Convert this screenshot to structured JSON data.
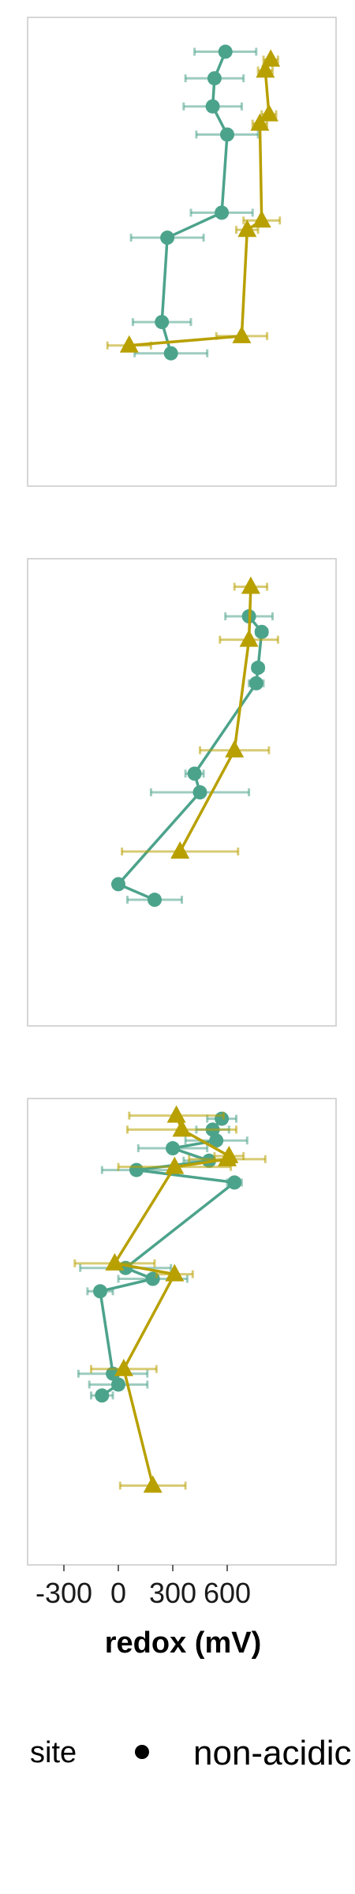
{
  "chart_data": {
    "type": "scatter",
    "xlabel": "redox (mV)",
    "xlim": [
      -500,
      1200
    ],
    "x_ticks": [
      -300,
      0,
      300,
      600
    ],
    "tick_labels": [
      "-300",
      "0",
      "300",
      "600"
    ],
    "legend": {
      "title": "site",
      "entries": [
        "non-acidic"
      ],
      "placement": "bottom"
    },
    "colors": {
      "non-acidic": "#4ca38b",
      "acidic": "#b8a000"
    },
    "panels": [
      {
        "ylim": [
          0,
          30
        ],
        "series": [
          {
            "name": "non-acidic",
            "marker": "circle",
            "points": [
              {
                "x": 590,
                "y": 2.2,
                "err": 170
              },
              {
                "x": 530,
                "y": 3.9,
                "err": 160
              },
              {
                "x": 520,
                "y": 5.7,
                "err": 160
              },
              {
                "x": 600,
                "y": 7.5,
                "err": 170
              },
              {
                "x": 570,
                "y": 12.5,
                "err": 170
              },
              {
                "x": 270,
                "y": 14.1,
                "err": 200
              },
              {
                "x": 240,
                "y": 19.5,
                "err": 160
              },
              {
                "x": 290,
                "y": 21.5,
                "err": 200
              }
            ]
          },
          {
            "name": "acidic",
            "marker": "triangle",
            "points": [
              {
                "x": 840,
                "y": 2.7,
                "err": 40
              },
              {
                "x": 810,
                "y": 3.4,
                "err": 40
              },
              {
                "x": 830,
                "y": 6.2,
                "err": 40
              },
              {
                "x": 780,
                "y": 6.8,
                "err": 40
              },
              {
                "x": 790,
                "y": 13.0,
                "err": 100
              },
              {
                "x": 710,
                "y": 13.6,
                "err": 60
              },
              {
                "x": 680,
                "y": 20.4,
                "err": 140
              },
              {
                "x": 60,
                "y": 21.0,
                "err": 120
              }
            ]
          }
        ]
      },
      {
        "ylim": [
          0,
          30
        ],
        "series": [
          {
            "name": "non-acidic",
            "marker": "circle",
            "points": [
              {
                "x": 720,
                "y": 3.7,
                "err": 130
              },
              {
                "x": 790,
                "y": 4.7,
                "err": 30
              },
              {
                "x": 770,
                "y": 7.0,
                "err": 30
              },
              {
                "x": 760,
                "y": 8.0,
                "err": 40
              },
              {
                "x": 420,
                "y": 13.8,
                "err": 50
              },
              {
                "x": 450,
                "y": 15.0,
                "err": 270
              },
              {
                "x": 0,
                "y": 20.9,
                "err": 20
              },
              {
                "x": 200,
                "y": 21.9,
                "err": 150
              }
            ]
          },
          {
            "name": "acidic",
            "marker": "triangle",
            "points": [
              {
                "x": 730,
                "y": 1.8,
                "err": 90
              },
              {
                "x": 720,
                "y": 5.2,
                "err": 160
              },
              {
                "x": 640,
                "y": 12.3,
                "err": 190
              },
              {
                "x": 340,
                "y": 18.8,
                "err": 320
              }
            ]
          }
        ]
      },
      {
        "ylim": [
          0,
          30
        ],
        "series": [
          {
            "name": "non-acidic",
            "marker": "circle",
            "points": [
              {
                "x": 570,
                "y": 1.3,
                "err": 80
              },
              {
                "x": 520,
                "y": 2.0,
                "err": 90
              },
              {
                "x": 540,
                "y": 2.7,
                "err": 170
              },
              {
                "x": 300,
                "y": 3.2,
                "err": 190
              },
              {
                "x": 500,
                "y": 4.0,
                "err": 140
              },
              {
                "x": 100,
                "y": 4.6,
                "err": 190
              },
              {
                "x": 640,
                "y": 5.4,
                "err": 40
              },
              {
                "x": 40,
                "y": 10.9,
                "err": 250
              },
              {
                "x": 190,
                "y": 11.6,
                "err": 190
              },
              {
                "x": -100,
                "y": 12.4,
                "err": 70
              },
              {
                "x": -30,
                "y": 17.7,
                "err": 190
              },
              {
                "x": 0,
                "y": 18.4,
                "err": 160
              },
              {
                "x": -90,
                "y": 19.1,
                "err": 60
              }
            ]
          },
          {
            "name": "acidic",
            "marker": "triangle",
            "points": [
              {
                "x": 320,
                "y": 1.1,
                "err": 260
              },
              {
                "x": 350,
                "y": 2.0,
                "err": 300
              },
              {
                "x": 610,
                "y": 3.7,
                "err": 80
              },
              {
                "x": 600,
                "y": 3.9,
                "err": 210
              },
              {
                "x": 310,
                "y": 4.4,
                "err": 310
              },
              {
                "x": -20,
                "y": 10.6,
                "err": 220
              },
              {
                "x": 310,
                "y": 11.3,
                "err": 100
              },
              {
                "x": 30,
                "y": 17.4,
                "err": 180
              },
              {
                "x": 190,
                "y": 24.9,
                "err": 180
              }
            ]
          }
        ]
      }
    ]
  }
}
